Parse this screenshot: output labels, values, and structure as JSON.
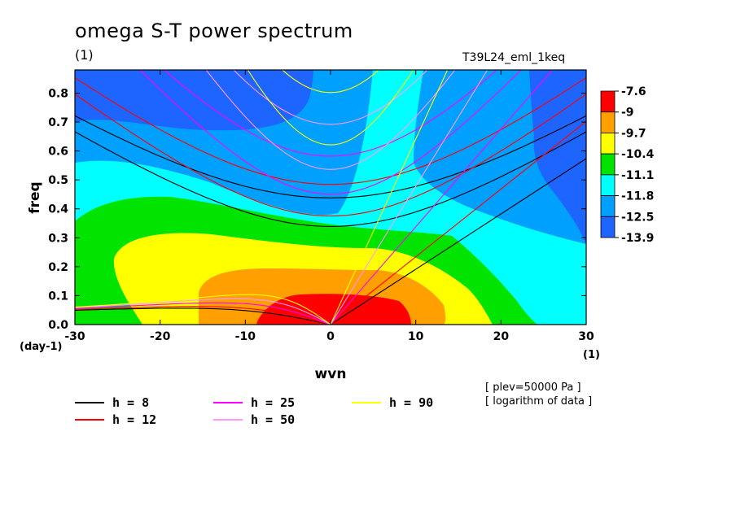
{
  "header": {
    "title": "omega S-T power spectrum",
    "subtitle": "(1)",
    "run": "T39L24_eml_1keq"
  },
  "notes": {
    "plev": "[ plev=50000 Pa ]",
    "log": "[ logarithm of data ]"
  },
  "colors": {
    "contour_fills": [
      "#1e64ff",
      "#00a0ff",
      "#00ffff",
      "#00e400",
      "#ffff00",
      "#ffa000",
      "#ff0000"
    ],
    "h8": "#000000",
    "h12": "#ff0000",
    "h25": "#ff00ff",
    "h50": "#ff99ff",
    "h90": "#ffff00"
  },
  "chart_data": {
    "type": "heatmap",
    "title": "omega S-T power spectrum",
    "xlabel": "wvn",
    "ylabel": "freq",
    "x_unit_label": "(1)",
    "y_unit_label": "(day-1)",
    "xlim": [
      -30,
      30
    ],
    "ylim": [
      0,
      0.88
    ],
    "x_ticks": [
      -30,
      -20,
      -10,
      0,
      10,
      20,
      30
    ],
    "y_ticks": [
      0.0,
      0.1,
      0.2,
      0.3,
      0.4,
      0.5,
      0.6,
      0.7,
      0.8
    ],
    "colorbar": {
      "labels": [
        "-7.6",
        "-9",
        "-9.7",
        "-10.4",
        "-11.1",
        "-11.8",
        "-12.5",
        "-13.9"
      ],
      "colors": [
        "#ff0000",
        "#ffa000",
        "#ffff00",
        "#00e400",
        "#00ffff",
        "#00a0ff",
        "#1e64ff"
      ]
    },
    "dispersion_curves": [
      {
        "name": "h =  8",
        "h": 8,
        "color": "#000000"
      },
      {
        "name": "h = 12",
        "h": 12,
        "color": "#ff0000"
      },
      {
        "name": "h = 25",
        "h": 25,
        "color": "#ff00ff"
      },
      {
        "name": "h = 50",
        "h": 50,
        "color": "#ff99ff"
      },
      {
        "name": "h = 90",
        "h": 90,
        "color": "#ffff00"
      }
    ],
    "legend_placement": "bottom-left",
    "grid": false
  }
}
